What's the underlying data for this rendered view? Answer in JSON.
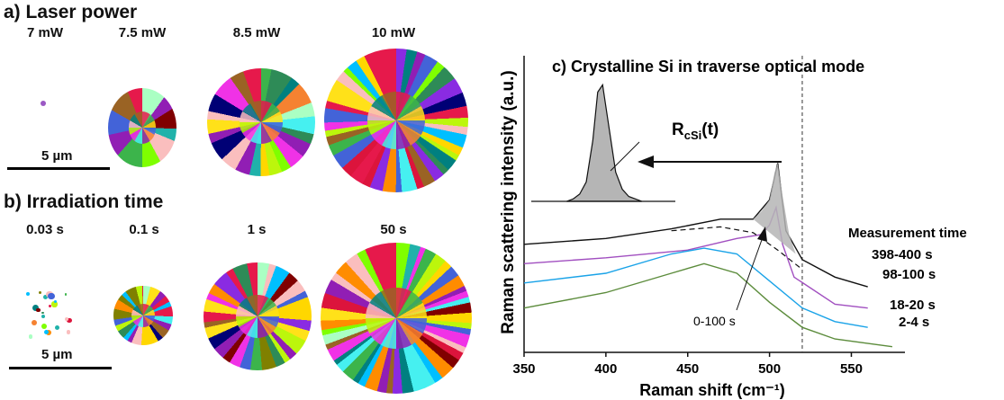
{
  "left_panels": {
    "laser": {
      "title": "a) Laser power",
      "conditions": [
        "7 mW",
        "7.5 mW",
        "8.5 mW",
        "10 mW"
      ],
      "scale": "5 µm"
    },
    "irradiation": {
      "title": "b) Irradiation time",
      "conditions": [
        "0.03 s",
        "0.1 s",
        "1 s",
        "50 s"
      ],
      "scale": "5 µm"
    }
  },
  "colors": {
    "black": "#111111",
    "purple": "#a14fc0",
    "cyan": "#1aa3e8",
    "green": "#5c8c3c",
    "peak_fill": "#b5b5b5"
  },
  "chart_data": {
    "type": "line",
    "title": "c) Crystalline Si in traverse optical mode",
    "xlabel": "Raman shift (cm⁻¹)",
    "ylabel": "Raman scattering intensity (a.u.)",
    "xlim": [
      350,
      580
    ],
    "x_ticks": [
      "350",
      "400",
      "450",
      "500",
      "550"
    ],
    "reference_line_x": 520,
    "legend_title": "Measurement time",
    "series": [
      {
        "name": "398-400 s",
        "x": [
          350,
          400,
          440,
          470,
          490,
          500,
          505,
          510,
          520,
          540,
          560
        ],
        "values": [
          0.55,
          0.58,
          0.63,
          0.68,
          0.68,
          0.78,
          0.97,
          0.62,
          0.47,
          0.38,
          0.33
        ]
      },
      {
        "name": "98-100 s",
        "x": [
          350,
          400,
          450,
          480,
          495,
          500,
          504,
          508,
          515,
          540,
          560
        ],
        "values": [
          0.45,
          0.48,
          0.52,
          0.58,
          0.6,
          0.65,
          0.74,
          0.55,
          0.38,
          0.24,
          0.22
        ]
      },
      {
        "name": "18-20 s",
        "x": [
          350,
          400,
          440,
          460,
          480,
          500,
          520,
          540,
          560
        ],
        "values": [
          0.35,
          0.4,
          0.5,
          0.53,
          0.5,
          0.36,
          0.22,
          0.15,
          0.12
        ]
      },
      {
        "name": "2-4 s",
        "x": [
          350,
          400,
          440,
          460,
          480,
          500,
          520,
          540,
          575
        ],
        "values": [
          0.22,
          0.3,
          0.4,
          0.45,
          0.4,
          0.25,
          0.12,
          0.06,
          0.02
        ]
      }
    ],
    "annotations": {
      "rate_label": "R",
      "rate_sub": "cSi",
      "rate_tail": "(t)",
      "arrow_label": "0-100 s"
    }
  }
}
